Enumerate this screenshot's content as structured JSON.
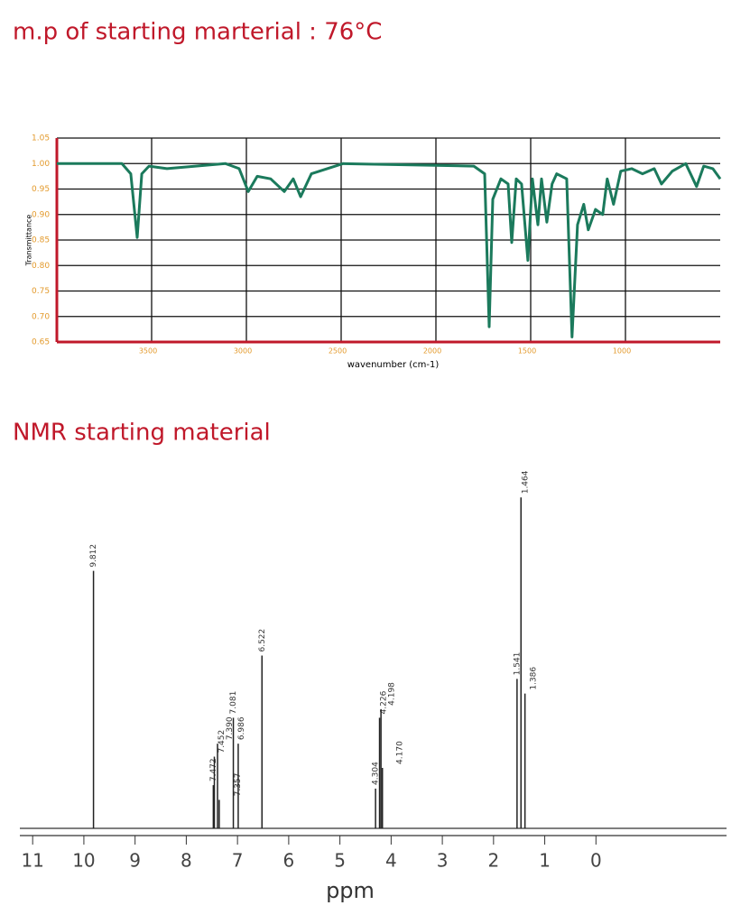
{
  "chart_data": [
    {
      "type": "line",
      "title": "m.p of starting marterial : 76°C",
      "xlabel": "wavenumber (cm-1)",
      "ylabel": "Transmittance",
      "x": [
        4000,
        3657,
        3610,
        3576,
        3552,
        3514,
        3419,
        3110,
        3038,
        2990,
        2943,
        2872,
        2800,
        2753,
        2714,
        2657,
        2490,
        1800,
        1743,
        1719,
        1700,
        1657,
        1619,
        1600,
        1576,
        1548,
        1515,
        1491,
        1462,
        1443,
        1415,
        1387,
        1363,
        1310,
        1282,
        1253,
        1220,
        1196,
        1158,
        1120,
        1096,
        1063,
        1025,
        967,
        910,
        848,
        810,
        753,
        682,
        625,
        587,
        539,
        500
      ],
      "values": [
        1.0,
        1.0,
        0.98,
        0.855,
        0.98,
        0.995,
        0.99,
        1.0,
        0.99,
        0.945,
        0.975,
        0.97,
        0.945,
        0.97,
        0.935,
        0.98,
        1.0,
        0.995,
        0.98,
        0.68,
        0.93,
        0.97,
        0.96,
        0.845,
        0.97,
        0.96,
        0.81,
        0.97,
        0.88,
        0.97,
        0.885,
        0.96,
        0.98,
        0.97,
        0.66,
        0.88,
        0.92,
        0.87,
        0.91,
        0.9,
        0.97,
        0.92,
        0.985,
        0.99,
        0.98,
        0.99,
        0.96,
        0.985,
        1.0,
        0.955,
        0.995,
        0.99,
        0.97
      ],
      "color": "#1b7a5c",
      "xlim": [
        4000,
        500
      ],
      "xticks": [
        3500,
        3000,
        2500,
        2000,
        1500,
        1000
      ],
      "ylim": [
        0.65,
        1.05
      ],
      "yticks": [
        0.65,
        {
          "value": 0.7,
          "label": "0.70"
        },
        0.75,
        {
          "value": 0.8,
          "label": "0.80"
        },
        0.85,
        {
          "value": 0.9,
          "label": "0.90"
        },
        0.95,
        {
          "value": 1,
          "label": "1.00"
        },
        1.05
      ],
      "grid": true
    },
    {
      "type": "stem",
      "title": "NMR starting material",
      "xlabel": "ppm",
      "x": [
        9.812,
        7.472,
        7.452,
        7.39,
        7.357,
        7.081,
        6.986,
        6.522,
        4.304,
        4.226,
        4.198,
        4.17,
        1.541,
        1.464,
        1.386
      ],
      "value_labels": [
        "9.812",
        "7.472",
        "7.452",
        "7.390",
        "7.357",
        "7.081",
        "6.986",
        "6.522",
        "4.304",
        "4.226",
        "4.198",
        "4.170",
        "1.541",
        "1.464",
        "1.386"
      ],
      "values": [
        298,
        50,
        83,
        98,
        33,
        128,
        98,
        200,
        46,
        128,
        138,
        70,
        173,
        383,
        156
      ],
      "color": "#222222",
      "xlim": [
        11.25,
        -2.55
      ],
      "xticks": [
        11,
        10,
        9,
        8,
        7,
        6,
        5,
        4,
        3,
        2,
        1,
        0
      ],
      "ylim": [
        0,
        400
      ]
    }
  ]
}
